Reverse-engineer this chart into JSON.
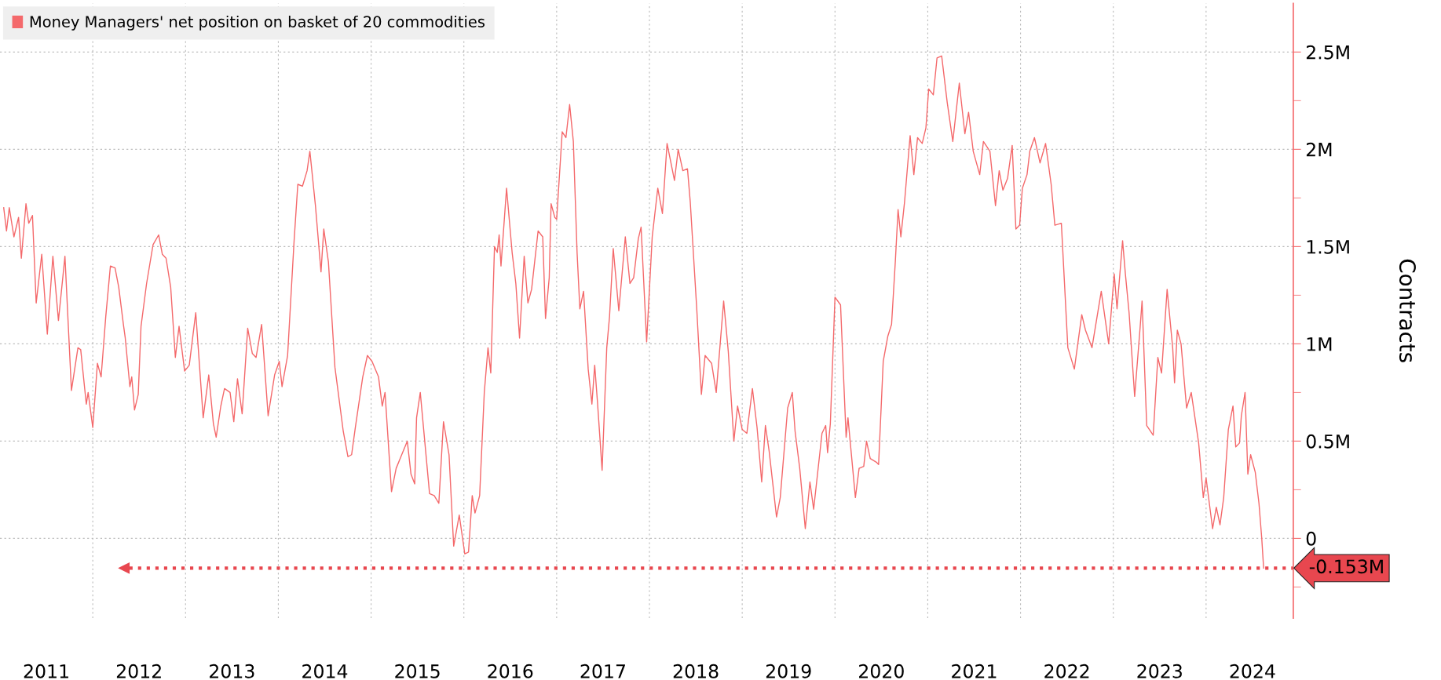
{
  "chart_data": {
    "type": "line",
    "ylabel": "Contracts",
    "xlim": [
      2011.0,
      2024.94
    ],
    "ylim": [
      -0.41,
      2.75
    ],
    "xticks": [
      {
        "value": 2011.5,
        "label": "2011"
      },
      {
        "value": 2012,
        "label": null
      },
      {
        "value": 2012.5,
        "label": "2012"
      },
      {
        "value": 2013,
        "label": null
      },
      {
        "value": 2013.5,
        "label": "2013"
      },
      {
        "value": 2014,
        "label": null
      },
      {
        "value": 2014.5,
        "label": "2014"
      },
      {
        "value": 2015,
        "label": null
      },
      {
        "value": 2015.5,
        "label": "2015"
      },
      {
        "value": 2016,
        "label": null
      },
      {
        "value": 2016.5,
        "label": "2016"
      },
      {
        "value": 2017,
        "label": null
      },
      {
        "value": 2017.5,
        "label": "2017"
      },
      {
        "value": 2018,
        "label": null
      },
      {
        "value": 2018.5,
        "label": "2018"
      },
      {
        "value": 2019,
        "label": null
      },
      {
        "value": 2019.5,
        "label": "2019"
      },
      {
        "value": 2020,
        "label": null
      },
      {
        "value": 2020.5,
        "label": "2020"
      },
      {
        "value": 2021,
        "label": null
      },
      {
        "value": 2021.5,
        "label": "2021"
      },
      {
        "value": 2022,
        "label": null
      },
      {
        "value": 2022.5,
        "label": "2022"
      },
      {
        "value": 2023,
        "label": null
      },
      {
        "value": 2023.5,
        "label": "2023"
      },
      {
        "value": 2024,
        "label": null
      },
      {
        "value": 2024.5,
        "label": "2024"
      }
    ],
    "yticks": [
      {
        "value": -0.25,
        "label": null
      },
      {
        "value": 0,
        "label": "0"
      },
      {
        "value": 0.25,
        "label": null
      },
      {
        "value": 0.5,
        "label": "0.5M"
      },
      {
        "value": 0.75,
        "label": null
      },
      {
        "value": 1,
        "label": "1M"
      },
      {
        "value": 1.25,
        "label": null
      },
      {
        "value": 1.5,
        "label": "1.5M"
      },
      {
        "value": 1.75,
        "label": null
      },
      {
        "value": 2,
        "label": "2M"
      },
      {
        "value": 2.25,
        "label": null
      },
      {
        "value": 2.5,
        "label": "2.5M"
      }
    ],
    "grid": true,
    "legend": "top left",
    "marker": "none",
    "line_style": "solid",
    "ref_lines": [
      {
        "axis": "y",
        "value": -0.153,
        "label": "-0.153M",
        "color": "#e8474f",
        "line_style": "dotted"
      }
    ],
    "series": [
      {
        "name": "Money Managers' net position on basket of 20 commodities",
        "color": "#f4696b",
        "x": [
          2011.04,
          2011.07,
          2011.1,
          2011.15,
          2011.2,
          2011.23,
          2011.28,
          2011.31,
          2011.35,
          2011.39,
          2011.45,
          2011.51,
          2011.57,
          2011.63,
          2011.7,
          2011.77,
          2011.84,
          2011.87,
          2011.93,
          2011.95,
          2012.0,
          2012.05,
          2012.09,
          2012.14,
          2012.19,
          2012.24,
          2012.28,
          2012.33,
          2012.35,
          2012.4,
          2012.42,
          2012.45,
          2012.49,
          2012.52,
          2012.58,
          2012.65,
          2012.71,
          2012.75,
          2012.79,
          2012.84,
          2012.89,
          2012.93,
          2012.99,
          2013.04,
          2013.11,
          2013.19,
          2013.25,
          2013.3,
          2013.33,
          2013.38,
          2013.42,
          2013.48,
          2013.52,
          2013.56,
          2013.61,
          2013.67,
          2013.72,
          2013.76,
          2013.82,
          2013.89,
          2013.96,
          2014.01,
          2014.04,
          2014.1,
          2014.17,
          2014.21,
          2014.26,
          2014.31,
          2014.34,
          2014.4,
          2014.46,
          2014.49,
          2014.54,
          2014.61,
          2014.7,
          2014.75,
          2014.79,
          2014.83,
          2014.91,
          2014.96,
          2015.01,
          2015.08,
          2015.12,
          2015.15,
          2015.22,
          2015.27,
          2015.33,
          2015.39,
          2015.43,
          2015.47,
          2015.49,
          2015.53,
          2015.63,
          2015.68,
          2015.73,
          2015.78,
          2015.84,
          2015.89,
          2015.95,
          2016.01,
          2016.05,
          2016.09,
          2016.12,
          2016.17,
          2016.22,
          2016.26,
          2016.29,
          2016.33,
          2016.36,
          2016.38,
          2016.4,
          2016.46,
          2016.52,
          2016.56,
          2016.6,
          2016.65,
          2016.69,
          2016.73,
          2016.8,
          2016.85,
          2016.88,
          2016.92,
          2016.94,
          2016.98,
          2017.0,
          2017.06,
          2017.1,
          2017.14,
          2017.18,
          2017.22,
          2017.25,
          2017.29,
          2017.34,
          2017.38,
          2017.41,
          2017.44,
          2017.49,
          2017.54,
          2017.57,
          2017.61,
          2017.67,
          2017.74,
          2017.79,
          2017.83,
          2017.88,
          2017.91,
          2017.97,
          2018.03,
          2018.09,
          2018.14,
          2018.19,
          2018.27,
          2018.31,
          2018.36,
          2018.41,
          2018.44,
          2018.51,
          2018.56,
          2018.6,
          2018.67,
          2018.72,
          2018.8,
          2018.85,
          2018.91,
          2018.95,
          2019.0,
          2019.05,
          2019.11,
          2019.16,
          2019.21,
          2019.25,
          2019.29,
          2019.37,
          2019.41,
          2019.49,
          2019.54,
          2019.57,
          2019.62,
          2019.68,
          2019.73,
          2019.77,
          2019.86,
          2019.9,
          2019.92,
          2019.95,
          2020.0,
          2020.06,
          2020.12,
          2020.14,
          2020.22,
          2020.26,
          2020.31,
          2020.34,
          2020.38,
          2020.45,
          2020.47,
          2020.52,
          2020.57,
          2020.61,
          2020.65,
          2020.68,
          2020.71,
          2020.75,
          2020.81,
          2020.85,
          2020.89,
          2020.94,
          2020.98,
          2021.01,
          2021.06,
          2021.1,
          2021.15,
          2021.21,
          2021.27,
          2021.34,
          2021.4,
          2021.44,
          2021.49,
          2021.56,
          2021.6,
          2021.67,
          2021.73,
          2021.77,
          2021.81,
          2021.86,
          2021.91,
          2021.95,
          2021.99,
          2022.02,
          2022.07,
          2022.1,
          2022.15,
          2022.21,
          2022.27,
          2022.33,
          2022.37,
          2022.44,
          2022.51,
          2022.58,
          2022.66,
          2022.7,
          2022.77,
          2022.87,
          2022.95,
          2023.01,
          2023.04,
          2023.1,
          2023.13,
          2023.17,
          2023.23,
          2023.29,
          2023.31,
          2023.36,
          2023.43,
          2023.48,
          2023.52,
          2023.58,
          2023.64,
          2023.66,
          2023.69,
          2023.73,
          2023.79,
          2023.84,
          2023.92,
          2023.97,
          2024.0,
          2024.07,
          2024.11,
          2024.15,
          2024.19,
          2024.24,
          2024.29,
          2024.32,
          2024.36,
          2024.38,
          2024.42,
          2024.45,
          2024.48,
          2024.53,
          2024.57,
          2024.6,
          2024.62
        ],
        "values": [
          1.7,
          1.58,
          1.7,
          1.55,
          1.65,
          1.44,
          1.72,
          1.62,
          1.66,
          1.21,
          1.46,
          1.05,
          1.45,
          1.12,
          1.45,
          0.76,
          0.98,
          0.97,
          0.69,
          0.75,
          0.57,
          0.9,
          0.83,
          1.14,
          1.4,
          1.39,
          1.29,
          1.1,
          1.03,
          0.78,
          0.83,
          0.66,
          0.74,
          1.09,
          1.31,
          1.51,
          1.56,
          1.46,
          1.44,
          1.29,
          0.93,
          1.09,
          0.86,
          0.89,
          1.16,
          0.62,
          0.84,
          0.59,
          0.52,
          0.68,
          0.77,
          0.75,
          0.6,
          0.82,
          0.64,
          1.08,
          0.95,
          0.93,
          1.1,
          0.63,
          0.84,
          0.91,
          0.78,
          0.94,
          1.53,
          1.82,
          1.81,
          1.89,
          1.99,
          1.71,
          1.37,
          1.59,
          1.42,
          0.88,
          0.55,
          0.42,
          0.43,
          0.57,
          0.83,
          0.94,
          0.91,
          0.83,
          0.68,
          0.75,
          0.24,
          0.36,
          0.43,
          0.5,
          0.33,
          0.28,
          0.62,
          0.75,
          0.23,
          0.22,
          0.18,
          0.6,
          0.43,
          -0.04,
          0.12,
          -0.08,
          -0.07,
          0.22,
          0.13,
          0.22,
          0.75,
          0.98,
          0.85,
          1.5,
          1.47,
          1.56,
          1.4,
          1.8,
          1.47,
          1.31,
          1.03,
          1.45,
          1.21,
          1.28,
          1.58,
          1.55,
          1.13,
          1.34,
          1.72,
          1.65,
          1.64,
          2.09,
          2.06,
          2.23,
          2.04,
          1.47,
          1.18,
          1.27,
          0.87,
          0.69,
          0.89,
          0.7,
          0.35,
          0.98,
          1.14,
          1.49,
          1.17,
          1.55,
          1.31,
          1.34,
          1.54,
          1.6,
          1.01,
          1.55,
          1.8,
          1.67,
          2.03,
          1.84,
          2.0,
          1.89,
          1.9,
          1.73,
          1.18,
          0.74,
          0.94,
          0.9,
          0.75,
          1.22,
          0.96,
          0.5,
          0.68,
          0.56,
          0.54,
          0.77,
          0.57,
          0.29,
          0.58,
          0.45,
          0.11,
          0.21,
          0.67,
          0.75,
          0.55,
          0.36,
          0.05,
          0.29,
          0.15,
          0.54,
          0.58,
          0.44,
          0.59,
          1.24,
          1.2,
          0.52,
          0.62,
          0.21,
          0.36,
          0.37,
          0.5,
          0.41,
          0.39,
          0.38,
          0.91,
          1.04,
          1.1,
          1.42,
          1.69,
          1.55,
          1.73,
          2.07,
          1.87,
          2.06,
          2.03,
          2.11,
          2.31,
          2.28,
          2.47,
          2.48,
          2.24,
          2.04,
          2.34,
          2.08,
          2.19,
          1.99,
          1.87,
          2.04,
          1.99,
          1.71,
          1.89,
          1.79,
          1.85,
          2.02,
          1.59,
          1.61,
          1.8,
          1.87,
          1.99,
          2.06,
          1.93,
          2.03,
          1.82,
          1.61,
          1.62,
          0.98,
          0.87,
          1.15,
          1.07,
          0.98,
          1.27,
          1.0,
          1.36,
          1.18,
          1.53,
          1.36,
          1.16,
          0.73,
          1.09,
          1.22,
          0.58,
          0.53,
          0.93,
          0.85,
          1.28,
          0.98,
          0.8,
          1.07,
          1.0,
          0.67,
          0.75,
          0.49,
          0.21,
          0.31,
          0.05,
          0.16,
          0.07,
          0.21,
          0.56,
          0.68,
          0.47,
          0.49,
          0.63,
          0.75,
          0.33,
          0.43,
          0.34,
          0.18,
          0.0,
          -0.153
        ]
      }
    ]
  }
}
